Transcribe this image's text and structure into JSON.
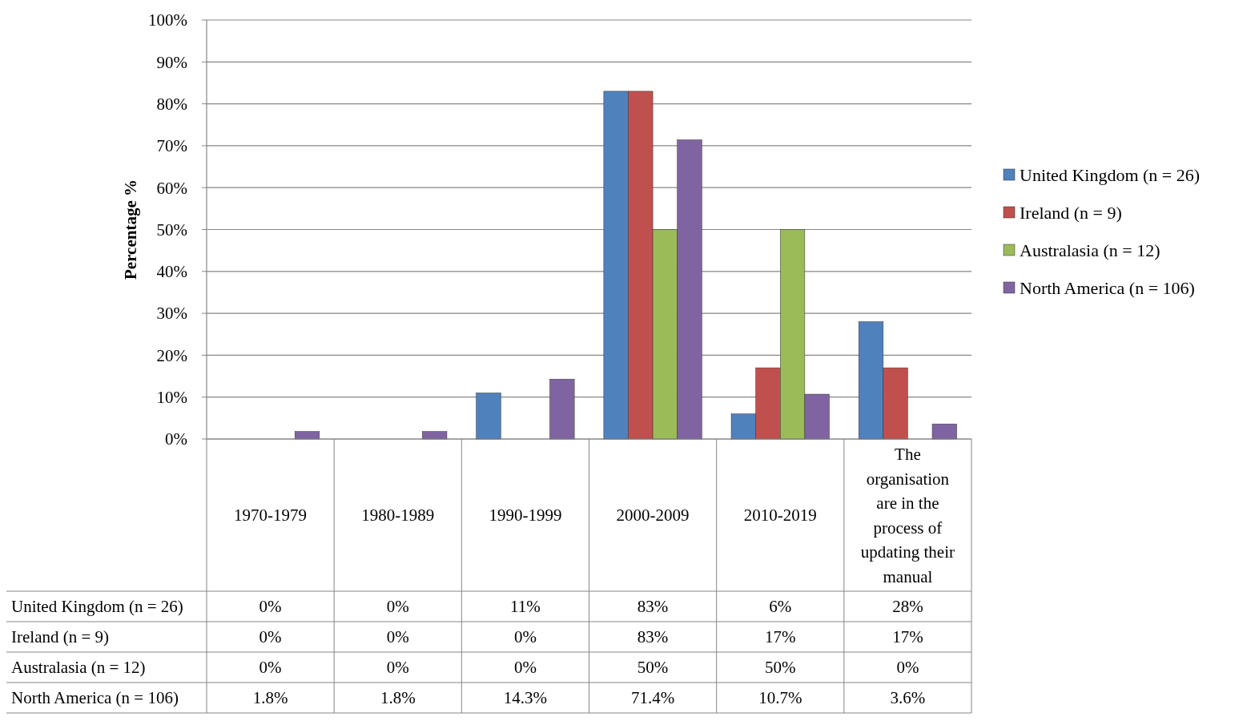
{
  "chart_data": {
    "type": "bar",
    "ylabel": "Percentage %",
    "categories": [
      "1970-1979",
      "1980-1989",
      "1990-1999",
      "2000-2009",
      "2010-2019",
      "The organisation are in the process of updating their manual"
    ],
    "series": [
      {
        "name": "United Kingdom (n = 26)",
        "color": "#4f81bd",
        "values": [
          0,
          0,
          11,
          83,
          6,
          28
        ],
        "value_labels": [
          "0%",
          "0%",
          "11%",
          "83%",
          "6%",
          "28%"
        ]
      },
      {
        "name": "Ireland (n = 9)",
        "color": "#c0504d",
        "values": [
          0,
          0,
          0,
          83,
          17,
          17
        ],
        "value_labels": [
          "0%",
          "0%",
          "0%",
          "83%",
          "17%",
          "17%"
        ]
      },
      {
        "name": "Australasia (n = 12)",
        "color": "#9bbb59",
        "values": [
          0,
          0,
          0,
          50,
          50,
          0
        ],
        "value_labels": [
          "0%",
          "0%",
          "0%",
          "50%",
          "50%",
          "0%"
        ]
      },
      {
        "name": "North America (n = 106)",
        "color": "#8064a2",
        "values": [
          1.8,
          1.8,
          14.3,
          71.4,
          10.7,
          3.6
        ],
        "value_labels": [
          "1.8%",
          "1.8%",
          "14.3%",
          "71.4%",
          "10.7%",
          "3.6%"
        ]
      }
    ],
    "ylim": [
      0,
      100
    ],
    "yticks": [
      {
        "value": 0,
        "label": "0%"
      },
      {
        "value": 10,
        "label": "10%"
      },
      {
        "value": 20,
        "label": "20%"
      },
      {
        "value": 30,
        "label": "30%"
      },
      {
        "value": 40,
        "label": "40%"
      },
      {
        "value": 50,
        "label": "50%"
      },
      {
        "value": 60,
        "label": "60%"
      },
      {
        "value": 70,
        "label": "70%"
      },
      {
        "value": 80,
        "label": "80%"
      },
      {
        "value": 90,
        "label": "90%"
      },
      {
        "value": 100,
        "label": "100%"
      }
    ],
    "grid": "y",
    "legend": "right"
  }
}
